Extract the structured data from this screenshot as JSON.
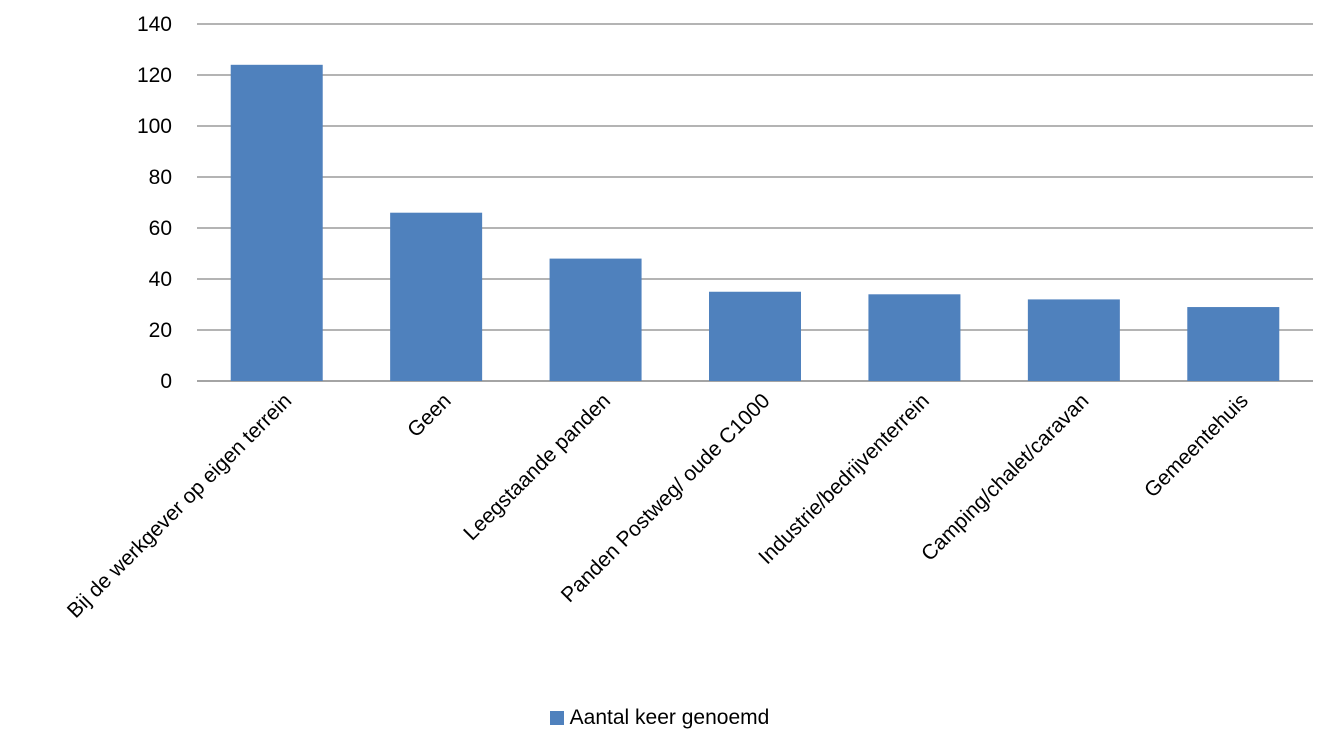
{
  "chart_data": {
    "type": "bar",
    "categories": [
      "Bij de werkgever op eigen terrein",
      "Geen",
      "Leegstaande panden",
      "Panden Postweg/ oude C1000",
      "Industrie/bedrijventerrein",
      "Camping/chalet/caravan",
      "Gemeentehuis"
    ],
    "series": [
      {
        "name": "Aantal keer genoemd",
        "values": [
          124,
          66,
          48,
          35,
          34,
          32,
          29
        ]
      }
    ],
    "ylim": [
      0,
      140
    ],
    "yticks": [
      "0",
      "20",
      "40",
      "60",
      "80",
      "100",
      "120",
      "140"
    ],
    "grid": true,
    "legend": "bottom",
    "colors": {
      "bar": "#4F81BD",
      "grid": "#868686"
    }
  }
}
